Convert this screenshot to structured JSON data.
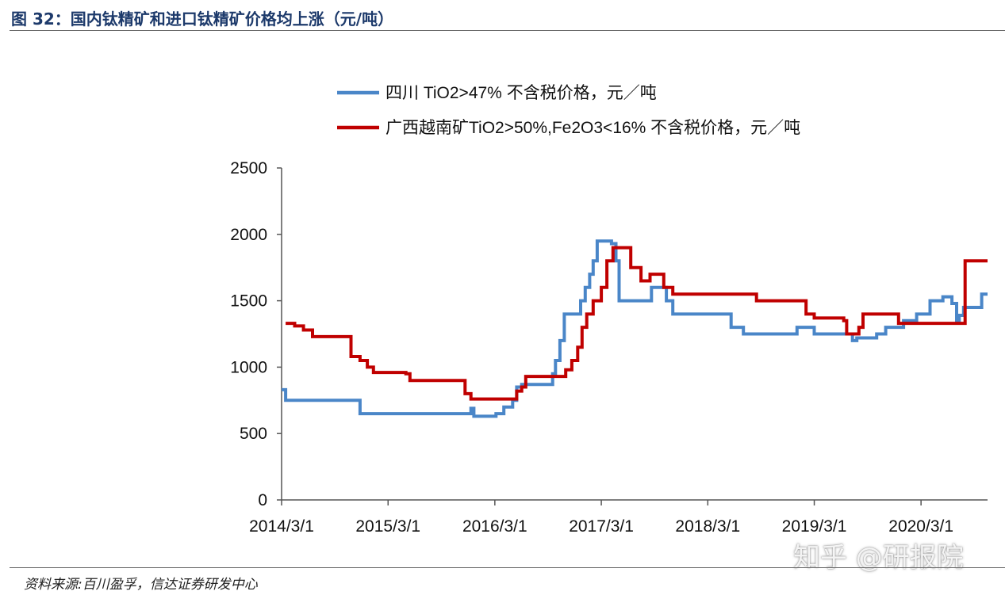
{
  "figure": {
    "title": "图 32：国内钛精矿和进口钛精矿价格均上涨（元/吨）",
    "source": "资料来源:百川盈孚，信达证券研发中心",
    "watermark": "知乎 @研报院"
  },
  "colors": {
    "title": "#1d3a6b",
    "sichuan": "#4a86c8",
    "guangxi": "#c00000",
    "axis": "#555555"
  },
  "chart_data": {
    "type": "line",
    "title": "",
    "xlabel": "",
    "ylabel": "",
    "ylim": [
      0,
      2500
    ],
    "xlim": [
      "2014-03-01",
      "2020-10-15"
    ],
    "yticks": [
      "0",
      "500",
      "1000",
      "1500",
      "2000",
      "2500"
    ],
    "xticks": [
      "2014/3/1",
      "2015/3/1",
      "2016/3/1",
      "2017/3/1",
      "2018/3/1",
      "2019/3/1",
      "2020/3/1"
    ],
    "grid": false,
    "legend": "top",
    "step": true,
    "series": [
      {
        "name": "四川 TiO2>47% 不含税价格，元／吨",
        "points": [
          [
            "2014-03-01",
            830
          ],
          [
            "2014-03-15",
            750
          ],
          [
            "2014-11-15",
            750
          ],
          [
            "2014-11-25",
            650
          ],
          [
            "2015-12-01",
            650
          ],
          [
            "2015-12-10",
            690
          ],
          [
            "2015-12-20",
            630
          ],
          [
            "2016-02-20",
            630
          ],
          [
            "2016-03-05",
            650
          ],
          [
            "2016-04-01",
            700
          ],
          [
            "2016-05-01",
            750
          ],
          [
            "2016-05-15",
            850
          ],
          [
            "2016-06-01",
            870
          ],
          [
            "2016-09-01",
            870
          ],
          [
            "2016-09-15",
            950
          ],
          [
            "2016-09-25",
            1050
          ],
          [
            "2016-10-10",
            1200
          ],
          [
            "2016-10-25",
            1400
          ],
          [
            "2016-12-10",
            1400
          ],
          [
            "2016-12-20",
            1500
          ],
          [
            "2017-01-05",
            1600
          ],
          [
            "2017-01-20",
            1700
          ],
          [
            "2017-02-01",
            1800
          ],
          [
            "2017-02-15",
            1950
          ],
          [
            "2017-04-05",
            1930
          ],
          [
            "2017-04-20",
            1800
          ],
          [
            "2017-05-01",
            1500
          ],
          [
            "2017-08-01",
            1500
          ],
          [
            "2017-08-20",
            1600
          ],
          [
            "2017-10-10",
            1500
          ],
          [
            "2017-11-01",
            1400
          ],
          [
            "2018-05-01",
            1400
          ],
          [
            "2018-05-20",
            1300
          ],
          [
            "2018-07-01",
            1250
          ],
          [
            "2018-12-01",
            1250
          ],
          [
            "2019-01-01",
            1300
          ],
          [
            "2019-02-20",
            1300
          ],
          [
            "2019-03-01",
            1250
          ],
          [
            "2019-07-01",
            1250
          ],
          [
            "2019-07-10",
            1200
          ],
          [
            "2019-07-25",
            1220
          ],
          [
            "2019-10-01",
            1250
          ],
          [
            "2019-11-01",
            1300
          ],
          [
            "2020-01-01",
            1350
          ],
          [
            "2020-02-15",
            1400
          ],
          [
            "2020-04-01",
            1500
          ],
          [
            "2020-05-15",
            1530
          ],
          [
            "2020-06-15",
            1480
          ],
          [
            "2020-07-01",
            1350
          ],
          [
            "2020-07-10",
            1390
          ],
          [
            "2020-07-25",
            1450
          ],
          [
            "2020-09-20",
            1450
          ],
          [
            "2020-09-25",
            1550
          ],
          [
            "2020-10-15",
            1550
          ]
        ]
      },
      {
        "name": "广西越南矿TiO2>50%,Fe2O3<16% 不含税价格，元／吨",
        "points": [
          [
            "2014-03-15",
            1330
          ],
          [
            "2014-04-15",
            1310
          ],
          [
            "2014-05-15",
            1280
          ],
          [
            "2014-06-15",
            1230
          ],
          [
            "2014-10-15",
            1230
          ],
          [
            "2014-10-25",
            1080
          ],
          [
            "2014-11-25",
            1050
          ],
          [
            "2014-12-20",
            1000
          ],
          [
            "2015-01-10",
            960
          ],
          [
            "2015-05-01",
            950
          ],
          [
            "2015-05-15",
            900
          ],
          [
            "2015-11-05",
            900
          ],
          [
            "2015-11-20",
            800
          ],
          [
            "2015-12-10",
            760
          ],
          [
            "2016-05-01",
            760
          ],
          [
            "2016-05-15",
            820
          ],
          [
            "2016-06-01",
            850
          ],
          [
            "2016-06-15",
            930
          ],
          [
            "2016-10-15",
            930
          ],
          [
            "2016-10-30",
            980
          ],
          [
            "2016-11-20",
            1050
          ],
          [
            "2016-12-10",
            1150
          ],
          [
            "2016-12-25",
            1300
          ],
          [
            "2017-01-10",
            1400
          ],
          [
            "2017-02-01",
            1500
          ],
          [
            "2017-03-01",
            1600
          ],
          [
            "2017-03-20",
            1800
          ],
          [
            "2017-04-10",
            1900
          ],
          [
            "2017-06-01",
            1900
          ],
          [
            "2017-06-10",
            1750
          ],
          [
            "2017-07-15",
            1650
          ],
          [
            "2017-08-15",
            1700
          ],
          [
            "2017-10-01",
            1600
          ],
          [
            "2017-11-01",
            1550
          ],
          [
            "2018-08-01",
            1550
          ],
          [
            "2018-08-15",
            1500
          ],
          [
            "2019-01-15",
            1500
          ],
          [
            "2019-02-01",
            1400
          ],
          [
            "2019-03-01",
            1370
          ],
          [
            "2019-06-10",
            1350
          ],
          [
            "2019-06-20",
            1250
          ],
          [
            "2019-08-01",
            1300
          ],
          [
            "2019-08-15",
            1400
          ],
          [
            "2019-12-01",
            1400
          ],
          [
            "2019-12-15",
            1330
          ],
          [
            "2020-07-20",
            1330
          ],
          [
            "2020-07-30",
            1800
          ],
          [
            "2020-10-15",
            1800
          ]
        ]
      }
    ]
  }
}
